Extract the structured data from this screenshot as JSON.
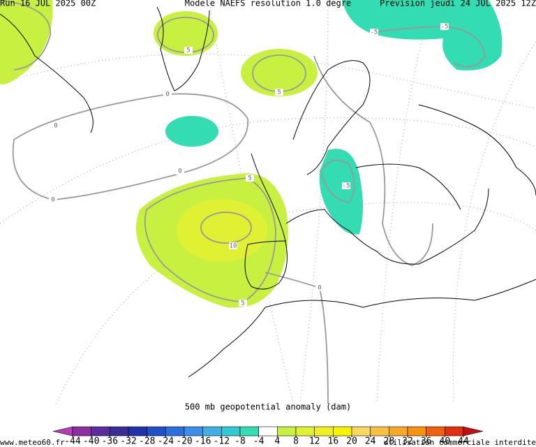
{
  "header": {
    "run": "Run 16 JUL 2025 00Z",
    "model": "Modele NAEFS resolution 1.0 degre",
    "forecast": "Prevision jeudi 24 JUL 2025 12Z"
  },
  "map": {
    "contour_labels": [
      "0",
      "0",
      "0",
      "0",
      "0",
      "5",
      "5",
      "5",
      "5",
      "-5",
      "-5",
      "-5",
      "10"
    ]
  },
  "colorbar": {
    "title": "500 mb geopotential anomaly (dam)",
    "ticks": [
      -44,
      -40,
      -36,
      -32,
      -28,
      -24,
      -20,
      -16,
      -12,
      -8,
      -4,
      4,
      8,
      12,
      16,
      20,
      24,
      28,
      32,
      36,
      40,
      44
    ],
    "colors": [
      "#b23fb5",
      "#8c2fa0",
      "#5b2d9c",
      "#3a2d96",
      "#2233aa",
      "#1f52c8",
      "#2c70e0",
      "#3b8eea",
      "#40aee2",
      "#33c8d2",
      "#33dcb2",
      "#ffffff",
      "#c8f040",
      "#e0f032",
      "#f0f020",
      "#f8f400",
      "#f8d860",
      "#f8c040",
      "#f8a828",
      "#f89010",
      "#f06010",
      "#e03010",
      "#c01010"
    ]
  },
  "footer": {
    "site": "www.meteo60.fr",
    "notice": "utilisation commerciale interdite"
  }
}
